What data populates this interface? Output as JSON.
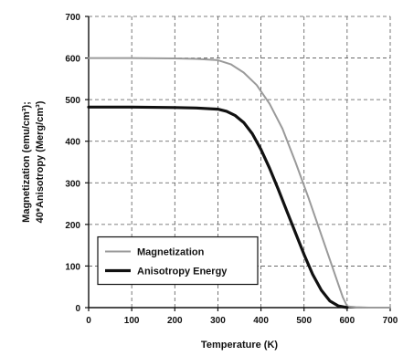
{
  "chart_data": {
    "type": "line",
    "title": "",
    "xlabel": "Temperature (K)",
    "ylabel_lines": [
      "Magnetization (emu/cm³);",
      "40*Anisotropy (Merg/cm³)"
    ],
    "xlim": [
      0,
      700
    ],
    "ylim": [
      0,
      700
    ],
    "x_ticks": [
      0,
      100,
      200,
      300,
      400,
      500,
      600,
      700
    ],
    "y_ticks": [
      0,
      100,
      200,
      300,
      400,
      500,
      600,
      700
    ],
    "grid": true,
    "legend_position": "bottom-left",
    "series": [
      {
        "name": "Magnetization",
        "color": "#9a9a9a",
        "x": [
          0,
          100,
          200,
          250,
          300,
          330,
          360,
          390,
          420,
          450,
          480,
          510,
          540,
          560,
          580,
          590,
          600,
          620,
          650,
          700
        ],
        "y": [
          600,
          600,
          599,
          598,
          595,
          585,
          565,
          535,
          490,
          430,
          350,
          265,
          175,
          115,
          55,
          25,
          3,
          1,
          0,
          0
        ]
      },
      {
        "name": "Anisotropy Energy",
        "color": "#111111",
        "x": [
          0,
          100,
          200,
          250,
          300,
          320,
          340,
          360,
          380,
          400,
          420,
          440,
          460,
          480,
          500,
          520,
          540,
          560,
          580,
          600
        ],
        "y": [
          482,
          482,
          481,
          480,
          477,
          472,
          462,
          445,
          418,
          380,
          335,
          285,
          232,
          180,
          128,
          80,
          42,
          16,
          4,
          0
        ]
      }
    ]
  }
}
